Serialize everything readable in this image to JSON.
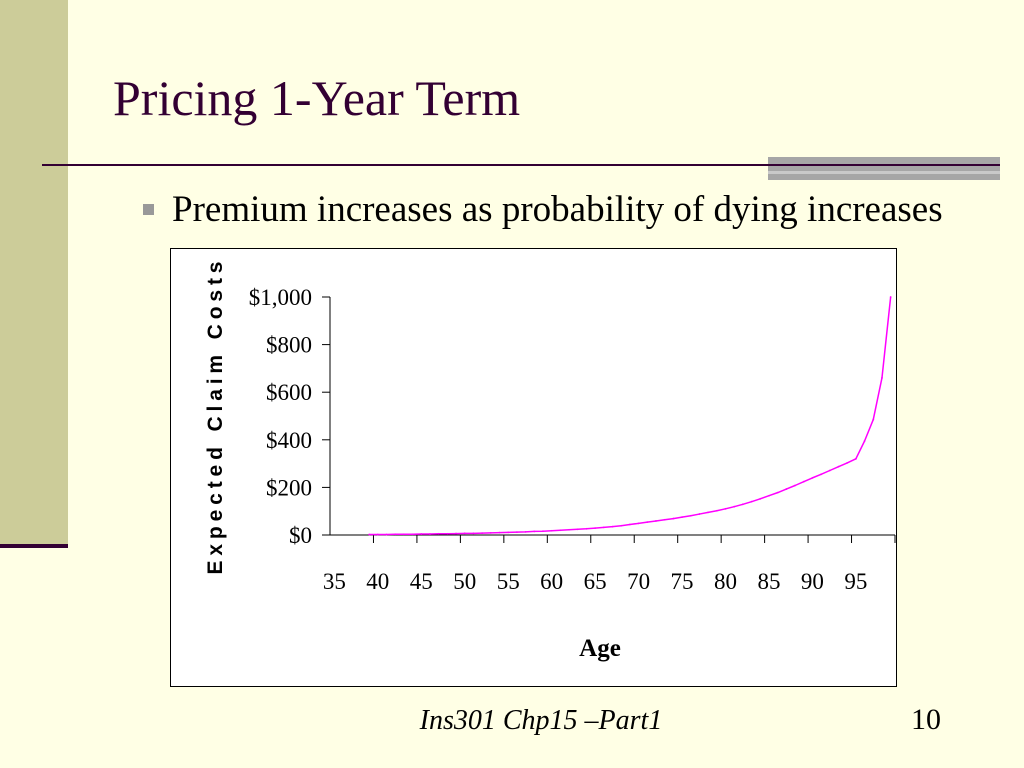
{
  "slide": {
    "title": "Pricing 1-Year Term",
    "bullets": [
      "Premium increases as probability of dying increases"
    ],
    "footer": "Ins301 Chp15 –Part1",
    "page_number": "10"
  },
  "theme": {
    "background": "#FFFFE5",
    "accent_bar": "#CCCC99",
    "title_color": "#330033",
    "rule_color": "#330033",
    "bullet_color": "#999999",
    "block_color": "#A6A6A6"
  },
  "chart_data": {
    "type": "line",
    "xlabel": "Age",
    "ylabel": "Expected Claim Costs",
    "categories": [
      35,
      36,
      37,
      38,
      39,
      40,
      41,
      42,
      43,
      44,
      45,
      46,
      47,
      48,
      49,
      50,
      51,
      52,
      53,
      54,
      55,
      56,
      57,
      58,
      59,
      60,
      61,
      62,
      63,
      64,
      65,
      66,
      67,
      68,
      69,
      70,
      71,
      72,
      73,
      74,
      75,
      76,
      77,
      78,
      79,
      80,
      81,
      82,
      83,
      84,
      85,
      86,
      87,
      88,
      89,
      90,
      91,
      92,
      93,
      94,
      95,
      96,
      97,
      98,
      99
    ],
    "x_tick_labels": [
      "35",
      "40",
      "45",
      "50",
      "55",
      "60",
      "65",
      "70",
      "75",
      "80",
      "85",
      "90",
      "95"
    ],
    "ylim": [
      0,
      1000
    ],
    "y_ticks": [
      0,
      200,
      400,
      600,
      800,
      1000
    ],
    "y_tick_labels": [
      "$0",
      "$200",
      "$400",
      "$600",
      "$800",
      "$1,000"
    ],
    "grid": false,
    "series": [
      {
        "color": "#FF00FF",
        "values": [
          null,
          null,
          null,
          null,
          2,
          2,
          2,
          3,
          3,
          3,
          4,
          4,
          5,
          5,
          6,
          7,
          7,
          8,
          9,
          10,
          11,
          12,
          13,
          15,
          16,
          18,
          20,
          22,
          24,
          26,
          29,
          32,
          35,
          39,
          44,
          49,
          54,
          59,
          64,
          69,
          75,
          81,
          88,
          95,
          102,
          110,
          119,
          129,
          140,
          152,
          165,
          178,
          193,
          208,
          224,
          240,
          255,
          271,
          287,
          303,
          320,
          395,
          485,
          660,
          1000
        ]
      }
    ]
  }
}
